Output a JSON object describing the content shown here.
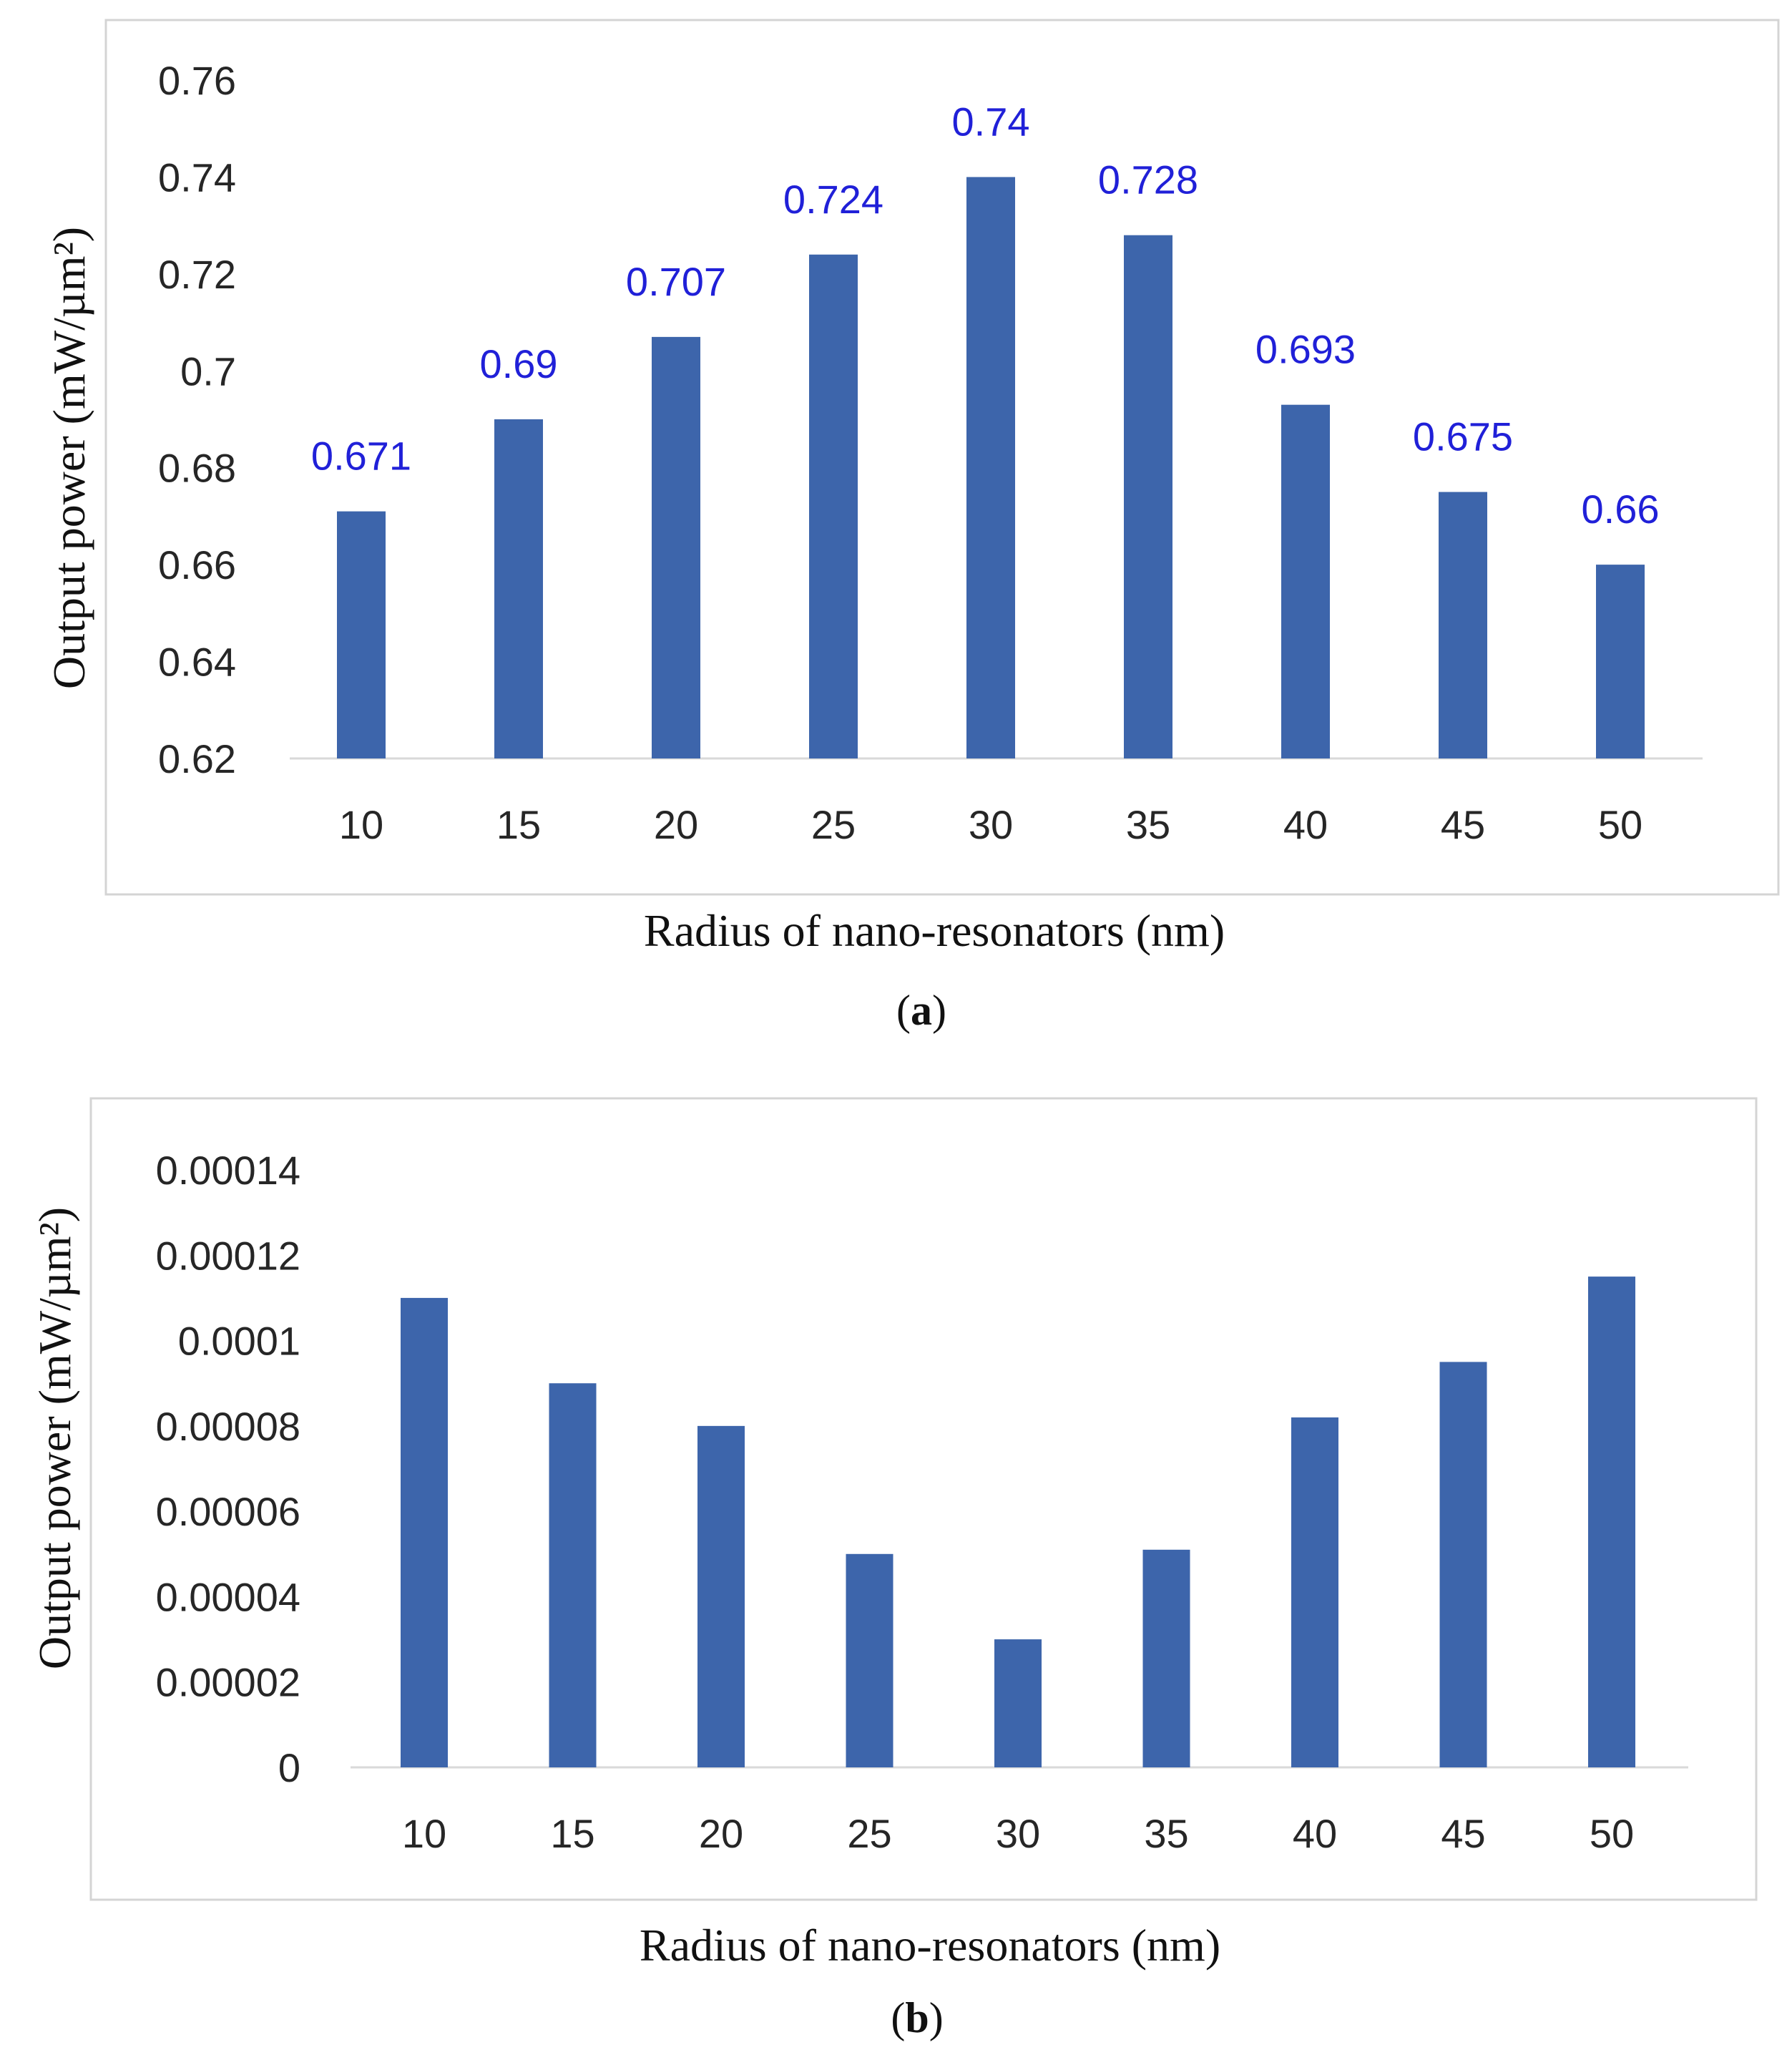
{
  "chart_data": [
    {
      "type": "bar",
      "panel": "a",
      "panel_open": "(",
      "panel_letter": "a",
      "panel_close": ")",
      "xlabel": "Radius of nano-resonators (nm)",
      "ylabel": "Output power (mW/µm²)",
      "categories": [
        "10",
        "15",
        "20",
        "25",
        "30",
        "35",
        "40",
        "45",
        "50"
      ],
      "values": [
        0.671,
        0.69,
        0.707,
        0.724,
        0.74,
        0.728,
        0.693,
        0.675,
        0.66
      ],
      "data_labels": [
        "0.671",
        "0.69",
        "0.707",
        "0.724",
        "0.74",
        "0.728",
        "0.693",
        "0.675",
        "0.66"
      ],
      "yticks": [
        "0.62",
        "0.64",
        "0.66",
        "0.68",
        "0.7",
        "0.72",
        "0.74",
        "0.76"
      ],
      "ylim": [
        0.62,
        0.76
      ],
      "bar_color": "#3d65ab",
      "label_color": "#2020d8",
      "grid": false
    },
    {
      "type": "bar",
      "panel": "b",
      "panel_open": "(",
      "panel_letter": "b",
      "panel_close": ")",
      "xlabel": "Radius of nano-resonators (nm)",
      "ylabel": "Output power (mW/µm²)",
      "categories": [
        "10",
        "15",
        "20",
        "25",
        "30",
        "35",
        "40",
        "45",
        "50"
      ],
      "values": [
        0.00011,
        9e-05,
        8e-05,
        5e-05,
        3e-05,
        5.1e-05,
        8.2e-05,
        9.5e-05,
        0.000115
      ],
      "yticks": [
        "0",
        "0.00002",
        "0.00004",
        "0.00006",
        "0.00008",
        "0.0001",
        "0.00012",
        "0.00014"
      ],
      "ylim": [
        0,
        0.00014
      ],
      "bar_color": "#3d65ab",
      "grid": false
    }
  ]
}
